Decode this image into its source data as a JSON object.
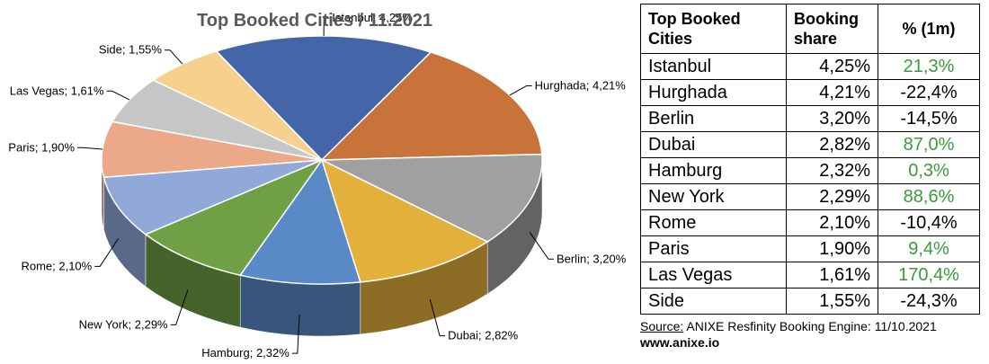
{
  "chart_data": {
    "type": "pie",
    "title": "Top Booked Cities / 11.2021",
    "slices": [
      {
        "label": "Istanbul; 4,25%",
        "value": 4.25,
        "color": "#4465a8"
      },
      {
        "label": "Hurghada; 4,21%",
        "value": 4.21,
        "color": "#c8733a"
      },
      {
        "label": "Berlin; 3,20%",
        "value": 3.2,
        "color": "#a0a0a0"
      },
      {
        "label": "Dubai; 2,82%",
        "value": 2.82,
        "color": "#e4b03c"
      },
      {
        "label": "Hamburg; 2,32%",
        "value": 2.32,
        "color": "#5a8ac6"
      },
      {
        "label": "New York; 2,29%",
        "value": 2.29,
        "color": "#6fa046"
      },
      {
        "label": "Rome; 2,10%",
        "value": 2.1,
        "color": "#91a9d8"
      },
      {
        "label": "Paris; 1,90%",
        "value": 1.9,
        "color": "#eba98a"
      },
      {
        "label": "Las Vegas; 1,61%",
        "value": 1.61,
        "color": "#c6c6c6"
      },
      {
        "label": "Side; 1,55%",
        "value": 1.55,
        "color": "#f6d18e"
      }
    ]
  },
  "table": {
    "headers": {
      "city": "Top Booked Cities",
      "share": "Booking share",
      "change": "% (1m)"
    },
    "rows": [
      {
        "city": "Istanbul",
        "share": "4,25%",
        "change": "21,3%",
        "positive": true
      },
      {
        "city": "Hurghada",
        "share": "4,21%",
        "change": "-22,4%",
        "positive": false
      },
      {
        "city": "Berlin",
        "share": "3,20%",
        "change": "-14,5%",
        "positive": false
      },
      {
        "city": "Dubai",
        "share": "2,82%",
        "change": "87,0%",
        "positive": true
      },
      {
        "city": "Hamburg",
        "share": "2,32%",
        "change": "0,3%",
        "positive": true
      },
      {
        "city": "New York",
        "share": "2,29%",
        "change": "88,6%",
        "positive": true
      },
      {
        "city": "Rome",
        "share": "2,10%",
        "change": "-10,4%",
        "positive": false
      },
      {
        "city": "Paris",
        "share": "1,90%",
        "change": "9,4%",
        "positive": true
      },
      {
        "city": "Las Vegas",
        "share": "1,61%",
        "change": "170,4%",
        "positive": true
      },
      {
        "city": "Side",
        "share": "1,55%",
        "change": "-24,3%",
        "positive": false
      }
    ]
  },
  "source": {
    "label": "Source:",
    "text": " ANIXE Resfinity Booking Engine: 11/10.2021",
    "website": "www.anixe.io"
  },
  "colors": {
    "positive": "#3a9b3a",
    "negative": "#000000"
  }
}
